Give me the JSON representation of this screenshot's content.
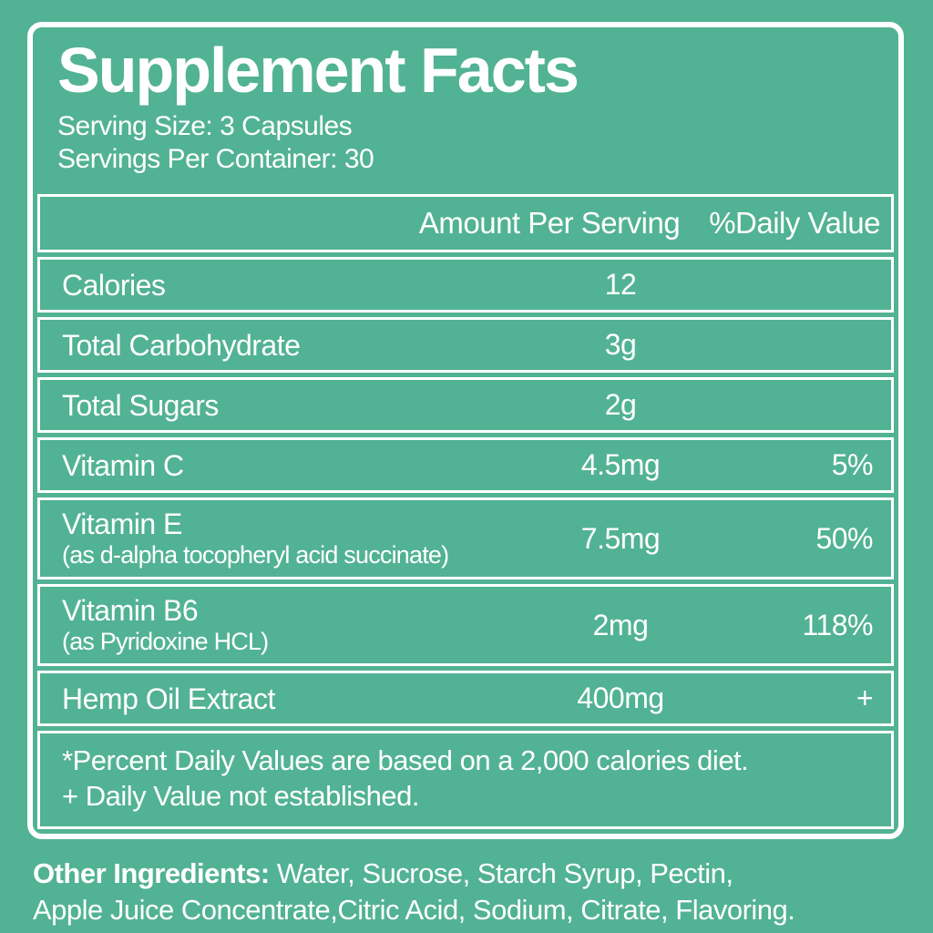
{
  "colors": {
    "background": "#52b294",
    "border": "#ffffff",
    "text": "#ffffff"
  },
  "header": {
    "title": "Supplement Facts",
    "serving_size": "Serving Size: 3 Capsules",
    "servings_per_container": "Servings Per Container: 30"
  },
  "table": {
    "columns": {
      "amount": "Amount Per Serving",
      "daily_value": "%Daily Value"
    },
    "rows": [
      {
        "name": "Calories",
        "sub": "",
        "amount": "12",
        "dv": ""
      },
      {
        "name": "Total Carbohydrate",
        "sub": "",
        "amount": "3g",
        "dv": ""
      },
      {
        "name": "Total Sugars",
        "sub": "",
        "amount": "2g",
        "dv": ""
      },
      {
        "name": "Vitamin C",
        "sub": "",
        "amount": "4.5mg",
        "dv": "5%"
      },
      {
        "name": "Vitamin E",
        "sub": "(as d-alpha tocopheryl acid succinate)",
        "amount": "7.5mg",
        "dv": "50%"
      },
      {
        "name": "Vitamin B6",
        "sub": "(as Pyridoxine HCL)",
        "amount": "2mg",
        "dv": "118%"
      },
      {
        "name": "Hemp Oil Extract",
        "sub": "",
        "amount": "400mg",
        "dv": "+"
      }
    ],
    "footnotes": [
      "*Percent Daily Values are based on a 2,000 calories diet.",
      "+ Daily Value not established."
    ]
  },
  "other_ingredients": {
    "label": "Other Ingredients:",
    "line1_rest": " Water, Sucrose, Starch Syrup, Pectin,",
    "line2": "Apple Juice Concentrate,Citric Acid, Sodium, Citrate, Flavoring."
  }
}
